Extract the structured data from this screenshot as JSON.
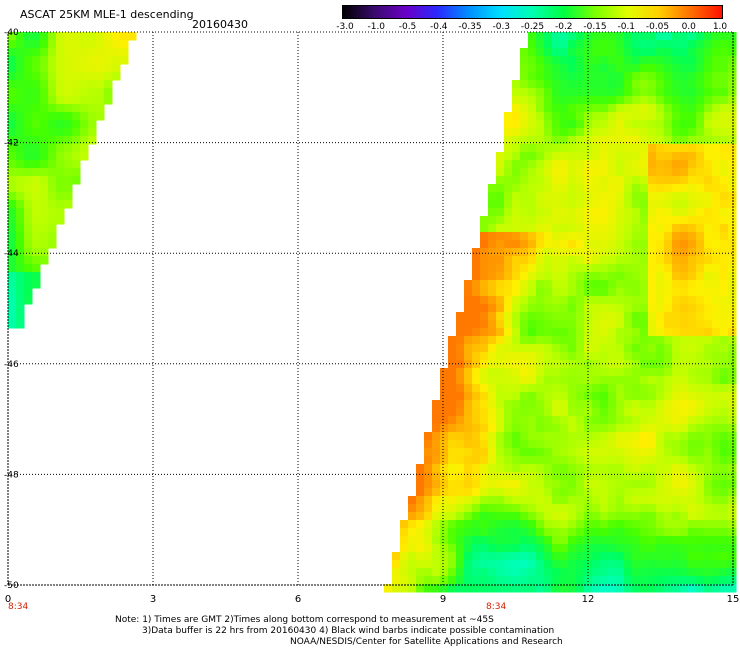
{
  "header": {
    "title": "ASCAT 25KM MLE-1 descending",
    "date": "20160430"
  },
  "colorbar": {
    "labels": [
      "-3.0",
      "-1.0",
      "-0.5",
      "-0.4",
      "-0.35",
      "-0.3",
      "-0.25",
      "-0.2",
      "-0.15",
      "-0.1",
      "-0.05",
      "0.0",
      "1.0"
    ],
    "colors": [
      "#000000",
      "#3a0a6e",
      "#6a00c8",
      "#2a2aff",
      "#0090ff",
      "#00e0ff",
      "#00ffb0",
      "#00ff40",
      "#7cff00",
      "#e0ff00",
      "#ffd000",
      "#ff7000",
      "#ff1000"
    ]
  },
  "map": {
    "x_ticks": [
      "0",
      "3",
      "6",
      "9",
      "12",
      "15"
    ],
    "y_ticks": [
      "-40",
      "-42",
      "-44",
      "-46",
      "-48",
      "-50"
    ],
    "time_labels": [
      "8:34",
      "8:34"
    ],
    "time_positions_hours": [
      0,
      10.1
    ]
  },
  "notes": {
    "line1": "Note: 1) Times are GMT 2)Times along bottom correspond to measurement at ~45S",
    "line2": "3)Data buffer is 22 hrs from 20160430 4) Black wind barbs indicate possible contamination",
    "line3": "NOAA/NESDIS/Center for Satellite Applications and Research"
  }
}
